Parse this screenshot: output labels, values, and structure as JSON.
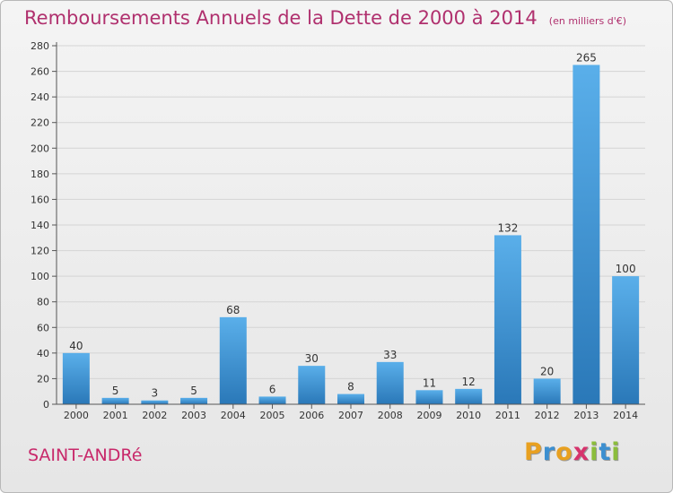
{
  "title": "Remboursements Annuels de la Dette de 2000 à 2014",
  "unit": "(en milliers d'€)",
  "commune": "SAINT-ANDRé",
  "logo": {
    "text": "Proxiti",
    "letters": [
      {
        "char": "P",
        "color": "#e8a020"
      },
      {
        "char": "r",
        "color": "#3c8fd0"
      },
      {
        "char": "o",
        "color": "#e8a020"
      },
      {
        "char": "x",
        "color": "#d6336c"
      },
      {
        "char": "i",
        "color": "#8bbd3c"
      },
      {
        "char": "t",
        "color": "#3c8fd0"
      },
      {
        "char": "i",
        "color": "#8bbd3c"
      }
    ]
  },
  "colors": {
    "title": "#b0306e",
    "bar_top": "#5aafea",
    "bar_bottom": "#2a78b8",
    "grid": "#d4d4d4"
  },
  "chart_data": {
    "type": "bar",
    "categories": [
      "2000",
      "2001",
      "2002",
      "2003",
      "2004",
      "2005",
      "2006",
      "2007",
      "2008",
      "2009",
      "2010",
      "2011",
      "2012",
      "2013",
      "2014"
    ],
    "values": [
      40,
      5,
      3,
      5,
      68,
      6,
      30,
      8,
      33,
      11,
      12,
      132,
      20,
      265,
      100
    ],
    "ylim": [
      0,
      280
    ],
    "yticks": [
      0,
      20,
      40,
      60,
      80,
      100,
      120,
      140,
      160,
      180,
      200,
      220,
      240,
      260,
      280
    ],
    "grid": true,
    "data_labels": true
  }
}
